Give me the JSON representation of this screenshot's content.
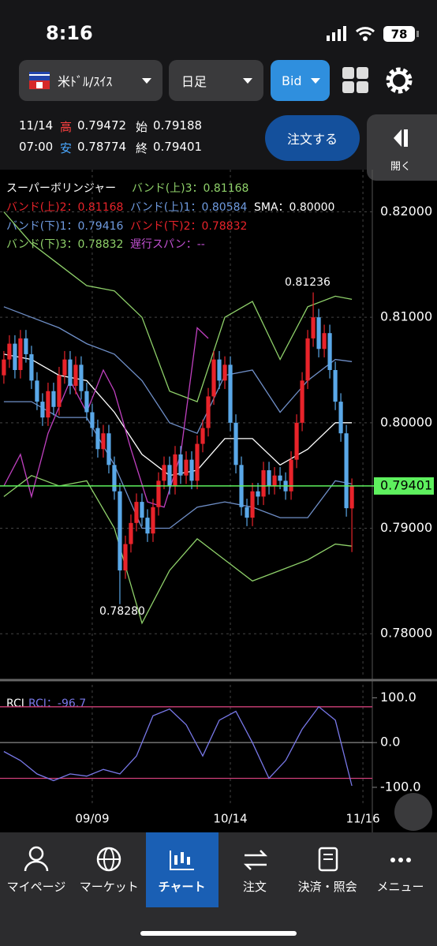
{
  "status_bar": {
    "time": "8:16",
    "battery": "78"
  },
  "toolbar": {
    "pair": "米ﾄﾞﾙ/ｽｲｽ",
    "period": "日足",
    "price_type": "Bid"
  },
  "quote": {
    "date": "11/14",
    "time": "07:00",
    "high_label": "高",
    "high": "0.79472",
    "open_label": "始",
    "open": "0.79188",
    "low_label": "安",
    "low": "0.78774",
    "close_label": "終",
    "close": "0.79401"
  },
  "order_button": "注文する",
  "open_panel": "開く",
  "chart_data": [
    {
      "type": "candlestick",
      "up_color": "#e8232a",
      "down_color": "#5aa8e8",
      "legend": [
        {
          "text": "スーパーボリンジャー",
          "color": "#ffffff"
        },
        {
          "text": "バンド(上)3：0.81168",
          "color": "#8fd16a"
        },
        {
          "text": "バンド(上)2：0.81168",
          "color": "#e8232a"
        },
        {
          "text": "バンド(上)1：0.80584",
          "color": "#6f9be0"
        },
        {
          "text": "SMA：0.80000",
          "color": "#ffffff"
        },
        {
          "text": "バンド(下)1：0.79416",
          "color": "#6f9be0"
        },
        {
          "text": "バンド(下)2：0.78832",
          "color": "#e8232a"
        },
        {
          "text": "バンド(下)3：0.78832",
          "color": "#8fd16a"
        },
        {
          "text": "遅行スパン：--",
          "color": "#c050d0"
        }
      ],
      "annotations": [
        "0.81236",
        "0.78280"
      ],
      "open": [
        0.8045,
        0.806,
        0.8075,
        0.805,
        0.808,
        0.8065,
        0.804,
        0.802,
        0.8005,
        0.803,
        0.8015,
        0.8045,
        0.806,
        0.8035,
        0.8055,
        0.803,
        0.801,
        0.7995,
        0.7975,
        0.799,
        0.796,
        0.7935,
        0.786,
        0.7885,
        0.7905,
        0.7925,
        0.791,
        0.7895,
        0.792,
        0.7945,
        0.796,
        0.794,
        0.797,
        0.795,
        0.7965,
        0.7945,
        0.798,
        0.7995,
        0.8025,
        0.806,
        0.804,
        0.8055,
        0.8,
        0.796,
        0.792,
        0.791,
        0.7935,
        0.793,
        0.7955,
        0.794,
        0.795,
        0.7945,
        0.7935,
        0.7965,
        0.8,
        0.804,
        0.808,
        0.81,
        0.807,
        0.8085,
        0.805,
        0.802,
        0.799,
        0.79188
      ],
      "high": [
        0.8068,
        0.8083,
        0.8083,
        0.8088,
        0.8088,
        0.8073,
        0.8048,
        0.8028,
        0.8038,
        0.8038,
        0.8053,
        0.8068,
        0.8068,
        0.8063,
        0.8063,
        0.8038,
        0.8018,
        0.8003,
        0.7998,
        0.7998,
        0.7968,
        0.7943,
        0.7893,
        0.7913,
        0.7933,
        0.7933,
        0.7918,
        0.7928,
        0.7953,
        0.7968,
        0.7968,
        0.7978,
        0.7978,
        0.7973,
        0.7973,
        0.7988,
        0.8003,
        0.8033,
        0.8068,
        0.8068,
        0.8063,
        0.8063,
        0.8008,
        0.7968,
        0.7928,
        0.7943,
        0.7943,
        0.7963,
        0.7963,
        0.7958,
        0.7958,
        0.7953,
        0.7973,
        0.8008,
        0.8048,
        0.8088,
        0.81236,
        0.8108,
        0.8093,
        0.8093,
        0.8058,
        0.8028,
        0.7998,
        0.79472
      ],
      "low": [
        0.8037,
        0.8052,
        0.8042,
        0.8042,
        0.8057,
        0.8032,
        0.8012,
        0.7997,
        0.7997,
        0.8007,
        0.8007,
        0.8037,
        0.8027,
        0.8027,
        0.8022,
        0.8002,
        0.7987,
        0.7967,
        0.7967,
        0.7952,
        0.7927,
        0.7828,
        0.7852,
        0.7877,
        0.7897,
        0.7902,
        0.7887,
        0.7887,
        0.7912,
        0.7937,
        0.7932,
        0.7932,
        0.7942,
        0.7942,
        0.7937,
        0.7937,
        0.7972,
        0.7987,
        0.8017,
        0.8032,
        0.8032,
        0.7992,
        0.7952,
        0.7912,
        0.7902,
        0.7902,
        0.7922,
        0.7922,
        0.7932,
        0.7932,
        0.7937,
        0.7927,
        0.7927,
        0.7957,
        0.7992,
        0.8032,
        0.8072,
        0.8062,
        0.8062,
        0.8042,
        0.8012,
        0.7982,
        0.7911,
        0.78774
      ],
      "close": [
        0.806,
        0.8075,
        0.805,
        0.808,
        0.8065,
        0.804,
        0.802,
        0.8005,
        0.803,
        0.8015,
        0.8045,
        0.806,
        0.8035,
        0.8055,
        0.803,
        0.801,
        0.7995,
        0.7975,
        0.799,
        0.796,
        0.7935,
        0.786,
        0.7885,
        0.7905,
        0.7925,
        0.791,
        0.7895,
        0.792,
        0.7945,
        0.796,
        0.794,
        0.797,
        0.795,
        0.7965,
        0.7945,
        0.798,
        0.7995,
        0.8025,
        0.806,
        0.804,
        0.8055,
        0.8,
        0.796,
        0.792,
        0.791,
        0.7935,
        0.793,
        0.7955,
        0.794,
        0.795,
        0.7945,
        0.7935,
        0.7965,
        0.8,
        0.804,
        0.808,
        0.81,
        0.807,
        0.8085,
        0.805,
        0.802,
        0.799,
        0.7919,
        0.79401
      ],
      "overlays": [
        {
          "color": "#ffffff",
          "x": [
            0,
            5,
            10,
            15,
            20,
            25,
            30,
            35,
            40,
            45,
            50,
            55,
            60,
            63
          ],
          "values": [
            0.8065,
            0.806,
            0.8045,
            0.804,
            0.801,
            0.797,
            0.795,
            0.7955,
            0.7985,
            0.7985,
            0.796,
            0.7975,
            0.8,
            0.8
          ]
        },
        {
          "color": "#6f8fc8",
          "x": [
            0,
            5,
            10,
            15,
            20,
            25,
            30,
            35,
            40,
            45,
            50,
            55,
            60,
            63
          ],
          "values": [
            0.811,
            0.81,
            0.809,
            0.8075,
            0.8065,
            0.804,
            0.8,
            0.799,
            0.8045,
            0.805,
            0.801,
            0.804,
            0.806,
            0.8058
          ]
        },
        {
          "color": "#6f8fc8",
          "x": [
            0,
            5,
            10,
            15,
            20,
            25,
            30,
            35,
            40,
            45,
            50,
            55,
            60,
            63
          ],
          "values": [
            0.802,
            0.802,
            0.8005,
            0.8005,
            0.796,
            0.79,
            0.79,
            0.792,
            0.7925,
            0.792,
            0.791,
            0.791,
            0.7945,
            0.7942
          ]
        },
        {
          "color": "#8fd16a",
          "x": [
            0,
            5,
            10,
            15,
            20,
            25,
            30,
            35,
            40,
            45,
            50,
            55,
            60,
            63
          ],
          "values": [
            0.82,
            0.817,
            0.815,
            0.813,
            0.8125,
            0.81,
            0.803,
            0.802,
            0.81,
            0.8115,
            0.806,
            0.811,
            0.812,
            0.8117
          ]
        },
        {
          "color": "#8fd16a",
          "x": [
            0,
            5,
            10,
            15,
            20,
            25,
            30,
            35,
            40,
            45,
            50,
            55,
            60,
            63
          ],
          "values": [
            0.793,
            0.795,
            0.794,
            0.7945,
            0.79,
            0.781,
            0.786,
            0.789,
            0.787,
            0.785,
            0.786,
            0.787,
            0.7885,
            0.7883
          ]
        },
        {
          "color": "#c040c0",
          "x": [
            0,
            3,
            5,
            8,
            12,
            15,
            18,
            20,
            23,
            26,
            29,
            32,
            35,
            37
          ],
          "values": [
            0.794,
            0.797,
            0.793,
            0.799,
            0.804,
            0.801,
            0.805,
            0.803,
            0.7975,
            0.7925,
            0.792,
            0.797,
            0.809,
            0.808
          ]
        }
      ],
      "xlim": [
        -0.7,
        66.7
      ],
      "ylim": [
        0.7759,
        0.824
      ],
      "yticks": [
        {
          "value": 0.82,
          "label": "0.82000"
        },
        {
          "value": 0.81,
          "label": "0.81000"
        },
        {
          "value": 0.8,
          "label": "0.80000"
        },
        {
          "value": 0.79,
          "label": "0.79000"
        },
        {
          "value": 0.78,
          "label": "0.78000"
        }
      ],
      "xticks": [
        {
          "value": 16,
          "label": "09/09"
        },
        {
          "value": 41,
          "label": "10/14"
        },
        {
          "value": 65,
          "label": "11/16"
        }
      ],
      "price_line_color": "#5ef05e",
      "grid": true
    },
    {
      "type": "line",
      "title": "RCI",
      "xlim": [
        -0.7,
        66.7
      ],
      "ylim": [
        -139,
        129
      ],
      "yticks": [
        {
          "value": 100,
          "label": "100.0"
        },
        {
          "value": 0,
          "label": "0.0"
        },
        {
          "value": -100,
          "label": "-100.0"
        }
      ],
      "levels": [
        80,
        -80
      ],
      "level_color": "#d0407a",
      "series": [
        {
          "name": "RCI：-96.7",
          "color": "#7878e8",
          "x": [
            0,
            3,
            6,
            9,
            12,
            15,
            18,
            21,
            24,
            27,
            30,
            33,
            36,
            39,
            42,
            45,
            48,
            51,
            54,
            57,
            60,
            63
          ],
          "values": [
            -20,
            -40,
            -70,
            -85,
            -70,
            -75,
            -60,
            -70,
            -30,
            60,
            75,
            40,
            -30,
            50,
            70,
            0,
            -80,
            -40,
            30,
            80,
            50,
            -96.7
          ]
        }
      ]
    }
  ],
  "nav": [
    {
      "label": "マイページ"
    },
    {
      "label": "マーケット"
    },
    {
      "label": "チャート"
    },
    {
      "label": "注文"
    },
    {
      "label": "決済・照会"
    },
    {
      "label": "メニュー"
    }
  ]
}
